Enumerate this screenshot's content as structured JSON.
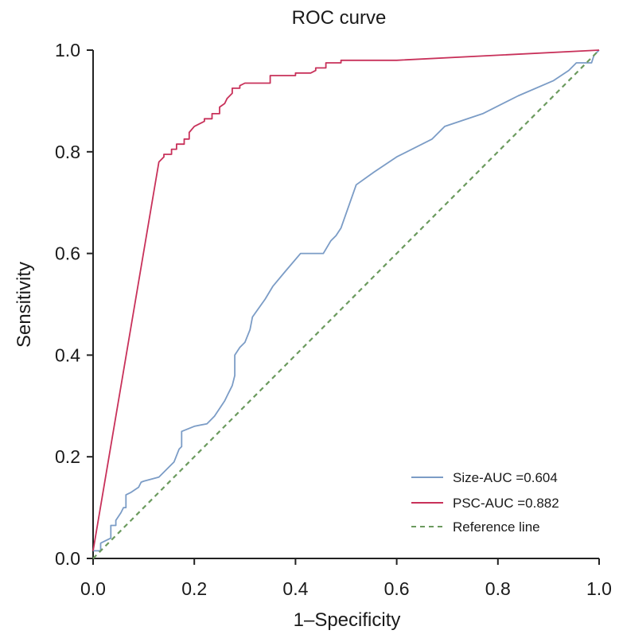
{
  "chart_data": {
    "type": "line",
    "title": "ROC curve",
    "xlabel": "1–Specificity",
    "ylabel": "Sensitivity",
    "xlim": [
      0,
      1
    ],
    "ylim": [
      0,
      1
    ],
    "xticks": [
      "0.0",
      "0.2",
      "0.4",
      "0.6",
      "0.8",
      "1.0"
    ],
    "yticks": [
      "0.0",
      "0.2",
      "0.4",
      "0.6",
      "0.8",
      "1.0"
    ],
    "grid": false,
    "legend_position": "bottom-right",
    "series": [
      {
        "name": "Size-AUC =0.604",
        "color": "#7b9cc6",
        "style": "solid",
        "x": [
          0.0,
          0.015,
          0.015,
          0.025,
          0.035,
          0.035,
          0.045,
          0.045,
          0.055,
          0.06,
          0.065,
          0.065,
          0.075,
          0.09,
          0.095,
          0.1,
          0.13,
          0.16,
          0.17,
          0.175,
          0.175,
          0.2,
          0.225,
          0.24,
          0.26,
          0.265,
          0.275,
          0.28,
          0.28,
          0.29,
          0.3,
          0.31,
          0.315,
          0.34,
          0.355,
          0.38,
          0.41,
          0.42,
          0.455,
          0.47,
          0.48,
          0.49,
          0.52,
          0.555,
          0.6,
          0.67,
          0.695,
          0.77,
          0.84,
          0.91,
          0.94,
          0.955,
          0.975,
          0.985,
          0.99,
          1.0
        ],
        "y": [
          0.015,
          0.015,
          0.03,
          0.035,
          0.04,
          0.065,
          0.065,
          0.075,
          0.09,
          0.1,
          0.1,
          0.125,
          0.13,
          0.14,
          0.15,
          0.152,
          0.16,
          0.19,
          0.215,
          0.22,
          0.25,
          0.26,
          0.265,
          0.28,
          0.31,
          0.32,
          0.34,
          0.36,
          0.4,
          0.415,
          0.425,
          0.45,
          0.475,
          0.51,
          0.535,
          0.565,
          0.6,
          0.6,
          0.6,
          0.625,
          0.635,
          0.65,
          0.735,
          0.76,
          0.79,
          0.825,
          0.85,
          0.875,
          0.91,
          0.94,
          0.96,
          0.975,
          0.975,
          0.975,
          0.99,
          1.0
        ]
      },
      {
        "name": "PSC-AUC =0.882",
        "color": "#c8315a",
        "style": "solid",
        "x": [
          0.0,
          0.13,
          0.135,
          0.14,
          0.14,
          0.155,
          0.155,
          0.165,
          0.165,
          0.18,
          0.18,
          0.19,
          0.19,
          0.2,
          0.21,
          0.22,
          0.22,
          0.235,
          0.235,
          0.25,
          0.25,
          0.26,
          0.265,
          0.27,
          0.275,
          0.275,
          0.29,
          0.29,
          0.3,
          0.35,
          0.35,
          0.4,
          0.4,
          0.43,
          0.44,
          0.44,
          0.46,
          0.46,
          0.49,
          0.49,
          0.55,
          0.6,
          1.0
        ],
        "y": [
          0.015,
          0.78,
          0.785,
          0.79,
          0.795,
          0.795,
          0.805,
          0.805,
          0.815,
          0.815,
          0.825,
          0.825,
          0.838,
          0.85,
          0.855,
          0.86,
          0.865,
          0.865,
          0.875,
          0.875,
          0.888,
          0.895,
          0.905,
          0.91,
          0.915,
          0.925,
          0.925,
          0.93,
          0.935,
          0.935,
          0.95,
          0.95,
          0.955,
          0.955,
          0.96,
          0.965,
          0.965,
          0.975,
          0.975,
          0.98,
          0.98,
          0.98,
          1.0
        ]
      },
      {
        "name": "Reference line",
        "color": "#6b9a5e",
        "style": "dashed",
        "x": [
          0.0,
          1.0
        ],
        "y": [
          0.0,
          1.0
        ]
      }
    ]
  }
}
